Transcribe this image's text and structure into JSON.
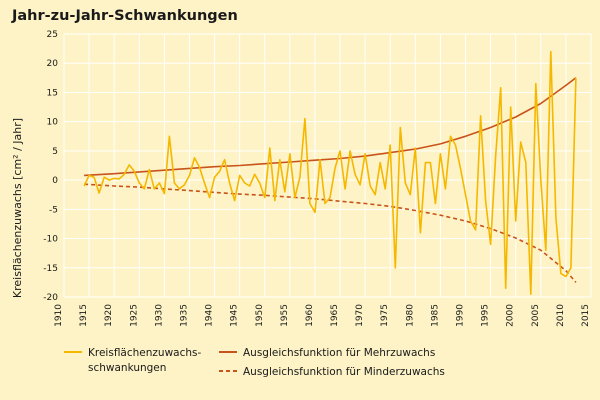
{
  "chart_data": {
    "type": "line",
    "title": "Jahr-zu-Jahr-Schwankungen",
    "ylabel": "Kreisflächenzuwachs [cm² / Jahr]",
    "xlabel": "",
    "xlim": [
      1910,
      2015
    ],
    "ylim": [
      -20,
      25
    ],
    "xticks": [
      1910,
      1915,
      1920,
      1925,
      1930,
      1935,
      1940,
      1945,
      1950,
      1955,
      1960,
      1965,
      1970,
      1975,
      1980,
      1985,
      1990,
      1995,
      2000,
      2005,
      2010,
      2015
    ],
    "yticks": [
      25,
      20,
      15,
      10,
      5,
      0,
      -5,
      -10,
      -15,
      -20
    ],
    "grid": true,
    "legend_position": "bottom",
    "colors": {
      "series": "#f5b800",
      "trend_up": "#c8531b",
      "trend_down": "#c8531b",
      "background": "#fdf3c6",
      "grid": "#ffffff"
    },
    "series": [
      {
        "name": "Kreisflächenzuwachs-schwankungen",
        "legend_lines": [
          "Kreisflächenzuwachs-",
          "schwankungen"
        ],
        "style": "solid",
        "x": [
          1914,
          1915,
          1916,
          1917,
          1918,
          1919,
          1920,
          1921,
          1922,
          1923,
          1924,
          1925,
          1926,
          1927,
          1928,
          1929,
          1930,
          1931,
          1932,
          1933,
          1934,
          1935,
          1936,
          1937,
          1938,
          1939,
          1940,
          1941,
          1942,
          1943,
          1944,
          1945,
          1946,
          1947,
          1948,
          1949,
          1950,
          1951,
          1952,
          1953,
          1954,
          1955,
          1956,
          1957,
          1958,
          1959,
          1960,
          1961,
          1962,
          1963,
          1964,
          1965,
          1966,
          1967,
          1968,
          1969,
          1970,
          1971,
          1972,
          1973,
          1974,
          1975,
          1976,
          1977,
          1978,
          1979,
          1980,
          1981,
          1982,
          1983,
          1984,
          1985,
          1986,
          1987,
          1988,
          1989,
          1990,
          1991,
          1992,
          1993,
          1994,
          1995,
          1996,
          1997,
          1998,
          1999,
          2000,
          2001,
          2002,
          2003,
          2004,
          2005,
          2006,
          2007,
          2008,
          2009,
          2010,
          2011,
          2012
        ],
        "y": [
          -1,
          0.8,
          0.5,
          -2.2,
          0.5,
          0,
          0.3,
          0.2,
          1,
          2.6,
          1.5,
          -0.5,
          -1.5,
          1.8,
          -1.5,
          -0.5,
          -2.3,
          7.5,
          -0.5,
          -1.5,
          -0.8,
          0.8,
          3.8,
          2.2,
          -0.5,
          -3,
          0.5,
          1.5,
          3.5,
          -0.5,
          -3.5,
          0.8,
          -0.5,
          -1,
          1,
          -0.5,
          -3,
          5.5,
          -3.5,
          3.5,
          -2,
          4.5,
          -3,
          0.5,
          10.5,
          -4,
          -5.5,
          3.5,
          -4,
          -3,
          2,
          5,
          -1.5,
          5,
          1,
          -0.8,
          4.5,
          -1,
          -2.5,
          3,
          -1.5,
          6,
          -15,
          9,
          -0.5,
          -2.5,
          5.5,
          -9,
          3,
          3,
          -4,
          4.5,
          -1.5,
          7.5,
          6,
          2,
          -2.5,
          -7,
          -8.5,
          11,
          -3.5,
          -11,
          4,
          15.8,
          -18.5,
          12.5,
          -7,
          6.5,
          3,
          -19.5,
          16.5,
          0,
          -12,
          22,
          -6.5,
          -16,
          -16.5,
          -15,
          17.5
        ]
      },
      {
        "name": "Ausgleichsfunktion für Mehrzuwachs",
        "style": "solid",
        "x": [
          1914,
          1920,
          1925,
          1930,
          1935,
          1940,
          1945,
          1950,
          1955,
          1960,
          1965,
          1970,
          1975,
          1980,
          1985,
          1990,
          1995,
          2000,
          2005,
          2010,
          2012
        ],
        "y": [
          0.8,
          1.1,
          1.4,
          1.7,
          2,
          2.3,
          2.5,
          2.8,
          3.1,
          3.4,
          3.7,
          4.1,
          4.7,
          5.3,
          6.2,
          7.5,
          9,
          10.8,
          13.1,
          16.2,
          17.5
        ]
      },
      {
        "name": "Ausgleichsfunktion für Minderzuwachs",
        "style": "dashed",
        "x": [
          1914,
          1920,
          1925,
          1930,
          1935,
          1940,
          1945,
          1950,
          1955,
          1960,
          1965,
          1970,
          1975,
          1980,
          1985,
          1990,
          1995,
          2000,
          2005,
          2010,
          2012
        ],
        "y": [
          -0.7,
          -1,
          -1.2,
          -1.5,
          -1.8,
          -2.1,
          -2.4,
          -2.6,
          -2.9,
          -3.2,
          -3.6,
          -4,
          -4.5,
          -5.2,
          -6,
          -7,
          -8.3,
          -9.9,
          -12,
          -15.5,
          -17.5
        ]
      }
    ]
  }
}
